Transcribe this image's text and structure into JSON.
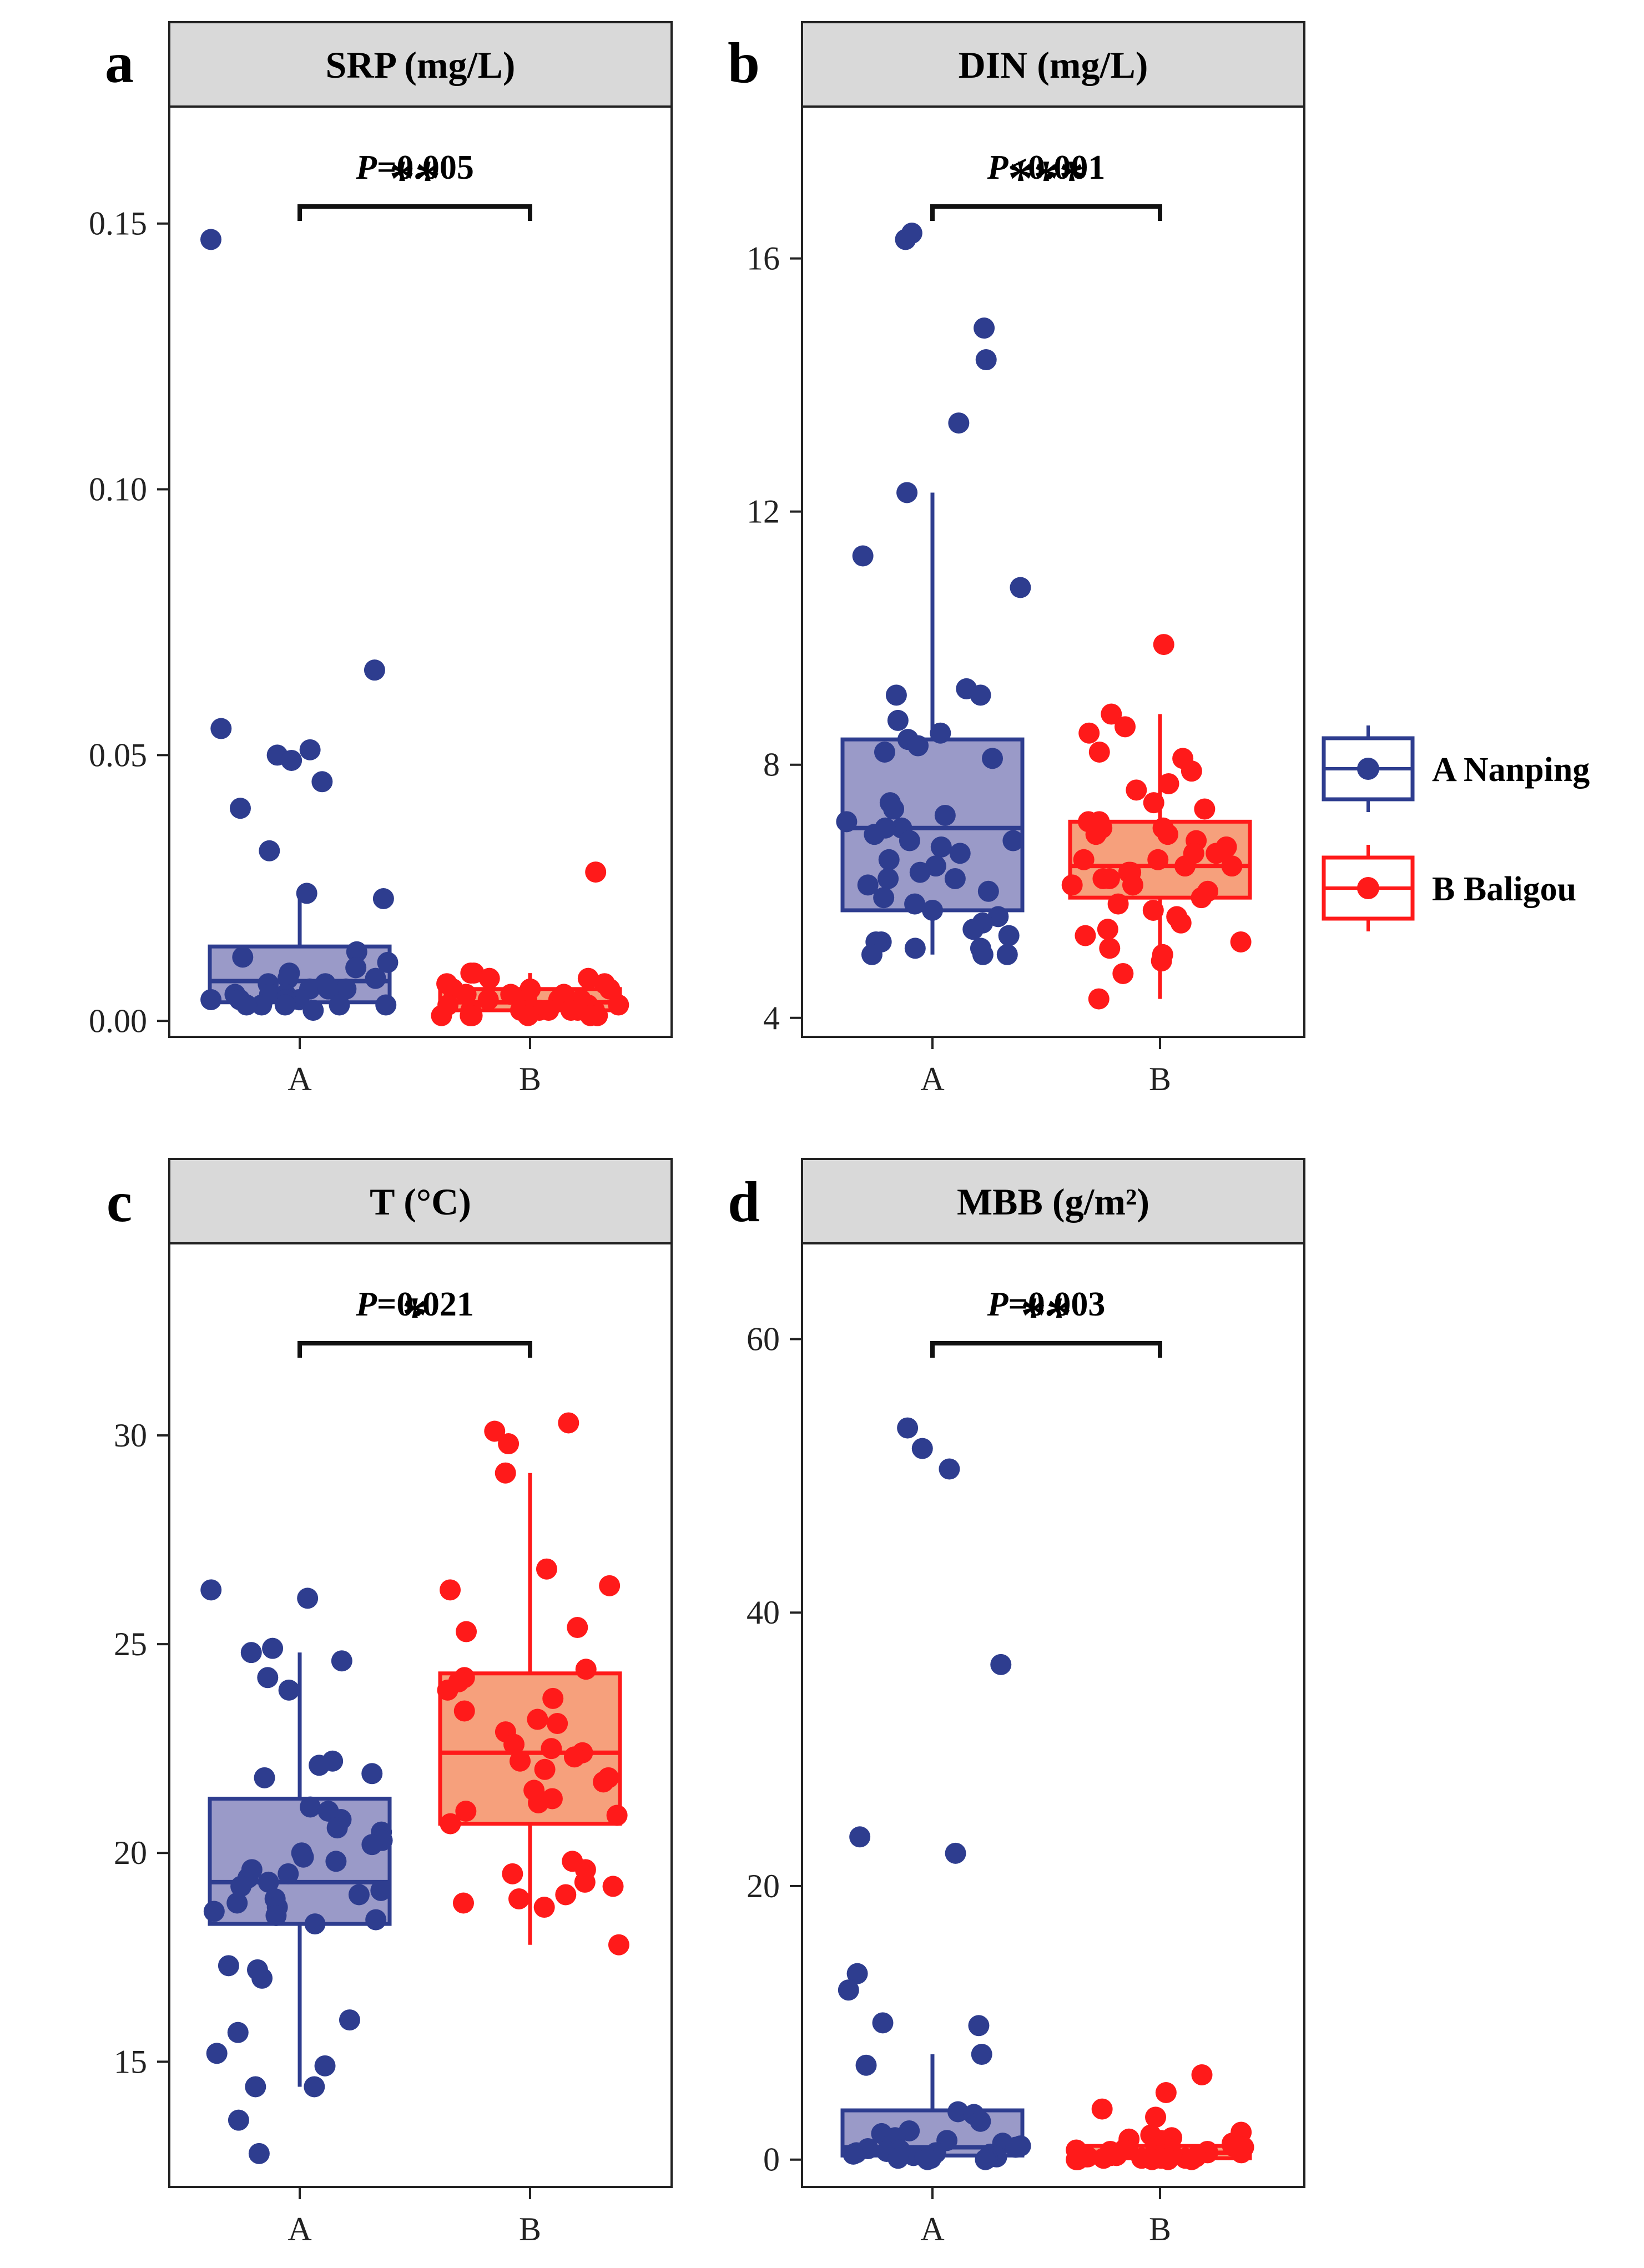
{
  "legend": {
    "items": [
      {
        "group": "A",
        "label": "A Nanping",
        "color": "#2e3d8f",
        "fill": "#9a9ac8"
      },
      {
        "group": "B",
        "label": "B Baligou",
        "color": "#ff1a1a",
        "fill": "#f6a07c"
      }
    ]
  },
  "chart_data": [
    {
      "type": "box",
      "panel": "a",
      "title": "SRP (mg/L)",
      "categories": [
        "A",
        "B"
      ],
      "ylim": [
        -0.003,
        0.172
      ],
      "yticks": [
        0.0,
        0.05,
        0.1,
        0.15
      ],
      "ytick_labels": [
        "0.00",
        "0.05",
        "0.10",
        "0.15"
      ],
      "p_label": "P",
      "p_value": "=0.005",
      "significance": "**",
      "series": [
        {
          "name": "A",
          "box": {
            "q1": 0.0035,
            "median": 0.0075,
            "q3": 0.014,
            "whisker_low": 0.002,
            "whisker_high": 0.024
          },
          "points": [
            0.147,
            0.066,
            0.055,
            0.051,
            0.05,
            0.049,
            0.045,
            0.04,
            0.032,
            0.024,
            0.023,
            0.013,
            0.012,
            0.011,
            0.01,
            0.009,
            0.008,
            0.008,
            0.007,
            0.007,
            0.006,
            0.006,
            0.006,
            0.005,
            0.005,
            0.005,
            0.004,
            0.004,
            0.004,
            0.004,
            0.003,
            0.003,
            0.003,
            0.003,
            0.003,
            0.002
          ]
        },
        {
          "name": "B",
          "box": {
            "q1": 0.002,
            "median": 0.0035,
            "q3": 0.006,
            "whisker_low": 0.0015,
            "whisker_high": 0.009
          },
          "points": [
            0.028,
            0.009,
            0.009,
            0.008,
            0.008,
            0.007,
            0.007,
            0.006,
            0.006,
            0.006,
            0.005,
            0.005,
            0.005,
            0.004,
            0.004,
            0.004,
            0.004,
            0.003,
            0.003,
            0.003,
            0.003,
            0.003,
            0.002,
            0.002,
            0.002,
            0.002,
            0.002,
            0.002,
            0.002,
            0.002,
            0.002,
            0.002,
            0.001,
            0.001,
            0.001,
            0.001,
            0.001,
            0.001
          ]
        }
      ]
    },
    {
      "type": "box",
      "panel": "b",
      "title": "DIN (mg/L)",
      "categories": [
        "A",
        "B"
      ],
      "ylim": [
        3.7,
        18.4
      ],
      "yticks": [
        4,
        8,
        12,
        16
      ],
      "ytick_labels": [
        "4",
        "8",
        "12",
        "16"
      ],
      "p_label": "P",
      "p_value": "<0.001",
      "significance": "***",
      "series": [
        {
          "name": "A",
          "box": {
            "q1": 5.7,
            "median": 7.0,
            "q3": 8.4,
            "whisker_low": 5.0,
            "whisker_high": 12.3
          },
          "points": [
            16.4,
            16.3,
            14.9,
            14.4,
            13.4,
            12.3,
            11.3,
            10.8,
            9.2,
            9.1,
            9.1,
            8.7,
            8.5,
            8.4,
            8.3,
            8.2,
            8.1,
            7.4,
            7.3,
            7.2,
            7.1,
            7.0,
            7.0,
            6.9,
            6.8,
            6.8,
            6.7,
            6.6,
            6.5,
            6.4,
            6.3,
            6.2,
            6.2,
            6.1,
            6.0,
            5.9,
            5.8,
            5.7,
            5.6,
            5.5,
            5.4,
            5.3,
            5.2,
            5.2,
            5.1,
            5.1,
            5.0,
            5.0,
            5.0
          ]
        },
        {
          "name": "B",
          "box": {
            "q1": 5.9,
            "median": 6.4,
            "q3": 7.1,
            "whisker_low": 4.3,
            "whisker_high": 8.8
          },
          "points": [
            9.9,
            8.8,
            8.6,
            8.5,
            8.2,
            8.1,
            7.9,
            7.7,
            7.6,
            7.4,
            7.3,
            7.1,
            7.1,
            7.0,
            7.0,
            6.9,
            6.9,
            6.8,
            6.7,
            6.7,
            6.6,
            6.6,
            6.5,
            6.5,
            6.4,
            6.4,
            6.3,
            6.3,
            6.2,
            6.2,
            6.1,
            6.1,
            6.0,
            5.9,
            5.8,
            5.7,
            5.6,
            5.5,
            5.4,
            5.3,
            5.2,
            5.1,
            5.0,
            4.9,
            4.7,
            4.3
          ]
        }
      ]
    },
    {
      "type": "box",
      "panel": "c",
      "title": "T (°C)",
      "categories": [
        "A",
        "B"
      ],
      "ylim": [
        12.0,
        34.6
      ],
      "yticks": [
        15,
        20,
        25,
        30
      ],
      "ytick_labels": [
        "15",
        "20",
        "25",
        "30"
      ],
      "p_label": "P",
      "p_value": "=0.021",
      "significance": "*",
      "series": [
        {
          "name": "A",
          "box": {
            "q1": 18.3,
            "median": 19.3,
            "q3": 21.3,
            "whisker_low": 14.4,
            "whisker_high": 24.8
          },
          "points": [
            26.3,
            26.1,
            24.9,
            24.8,
            24.6,
            24.2,
            23.9,
            22.2,
            22.1,
            21.9,
            21.8,
            21.1,
            21.0,
            20.8,
            20.6,
            20.5,
            20.3,
            20.2,
            20.0,
            19.9,
            19.8,
            19.6,
            19.5,
            19.4,
            19.3,
            19.2,
            19.1,
            19.0,
            18.9,
            18.8,
            18.7,
            18.6,
            18.5,
            18.4,
            18.3,
            17.3,
            17.2,
            17.0,
            16.0,
            15.7,
            15.2,
            14.9,
            14.4,
            14.4,
            13.6,
            12.8
          ]
        },
        {
          "name": "B",
          "box": {
            "q1": 20.7,
            "median": 22.4,
            "q3": 24.3,
            "whisker_low": 17.8,
            "whisker_high": 29.1
          },
          "points": [
            30.3,
            30.1,
            29.8,
            29.1,
            26.8,
            26.4,
            26.3,
            25.4,
            25.3,
            24.4,
            24.2,
            24.1,
            23.9,
            23.7,
            23.4,
            23.2,
            23.1,
            22.9,
            22.6,
            22.5,
            22.4,
            22.3,
            22.2,
            22.0,
            21.8,
            21.7,
            21.5,
            21.3,
            21.2,
            21.0,
            20.9,
            20.7,
            19.8,
            19.6,
            19.5,
            19.3,
            19.2,
            19.0,
            18.9,
            18.8,
            18.7,
            17.8
          ]
        }
      ]
    },
    {
      "type": "box",
      "panel": "d",
      "title": "MBB (g/m²)",
      "categories": [
        "A",
        "B"
      ],
      "ylim": [
        -2,
        67
      ],
      "yticks": [
        0,
        20,
        40,
        60
      ],
      "ytick_labels": [
        "0",
        "20",
        "40",
        "60"
      ],
      "p_label": "P",
      "p_value": "=0.003",
      "significance": "**",
      "series": [
        {
          "name": "A",
          "box": {
            "q1": 0.3,
            "median": 0.9,
            "q3": 3.6,
            "whisker_low": 0.0,
            "whisker_high": 7.7
          },
          "points": [
            53.5,
            52.0,
            50.5,
            36.2,
            23.6,
            22.4,
            13.6,
            12.4,
            10.0,
            9.8,
            7.7,
            6.9,
            3.5,
            3.3,
            2.8,
            2.1,
            1.9,
            1.6,
            1.4,
            1.2,
            1.0,
            0.9,
            0.8,
            0.7,
            0.6,
            0.5,
            0.5,
            0.4,
            0.4,
            0.3,
            0.3,
            0.2,
            0.2,
            0.1,
            0.1,
            0.1,
            0.0,
            0.0
          ]
        },
        {
          "name": "B",
          "box": {
            "q1": 0.1,
            "median": 0.5,
            "q3": 1.0,
            "whisker_low": 0.0,
            "whisker_high": 1.8
          },
          "points": [
            6.2,
            4.9,
            3.7,
            3.1,
            2.0,
            1.8,
            1.6,
            1.5,
            1.4,
            1.2,
            1.1,
            1.0,
            0.9,
            0.9,
            0.8,
            0.7,
            0.7,
            0.6,
            0.6,
            0.5,
            0.5,
            0.4,
            0.4,
            0.3,
            0.3,
            0.3,
            0.2,
            0.2,
            0.2,
            0.1,
            0.1,
            0.1,
            0.1,
            0.0,
            0.0,
            0.0,
            0.0,
            0.0
          ]
        }
      ]
    }
  ]
}
